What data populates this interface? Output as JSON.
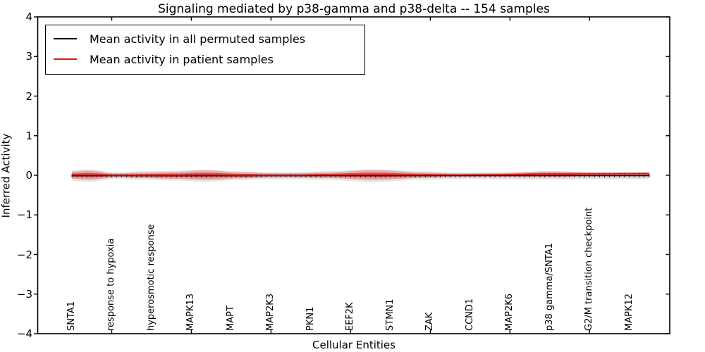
{
  "chart_data": {
    "type": "line",
    "title": "Signaling mediated by p38-gamma and p38-delta -- 154 samples",
    "xlabel": "Cellular Entities",
    "ylabel": "Inferred Activity",
    "ylim": [
      -4,
      4
    ],
    "ytick_values": [
      4,
      3,
      2,
      1,
      0,
      -1,
      -2,
      -3,
      -4
    ],
    "ytick_labels": [
      "4",
      "3",
      "2",
      "1",
      "0",
      "−1",
      "−2",
      "−3",
      "−4"
    ],
    "categories": [
      "SNTA1",
      "response to hypoxia",
      "hyperosmotic response",
      "MAPK13",
      "MAPT",
      "MAP2K3",
      "PKN1",
      "EEF2K",
      "STMN1",
      "ZAK",
      "CCND1",
      "MAP2K6",
      "p38 gamma/SNTA1",
      "G2/M transition checkpoint",
      "MAPK12"
    ],
    "n_points": 117,
    "label_every_n_points": 8,
    "xticks_at_label_indices": [
      1,
      3,
      5,
      7,
      9,
      11,
      13
    ],
    "legend": [
      {
        "label": "Mean activity in all permuted samples",
        "color": "#000000"
      },
      {
        "label": "Mean activity in patient samples",
        "color": "#ee1111"
      }
    ],
    "grid": false,
    "legend_position": "upper left",
    "envelopes": {
      "f": [
        0.0,
        0.028,
        0.077,
        0.12,
        0.181,
        0.23,
        0.291,
        0.346,
        0.388,
        0.437,
        0.523,
        0.608,
        0.669,
        0.73,
        0.828,
        0.913,
        1.0
      ],
      "permuted_mean": [
        -0.01,
        -0.01,
        -0.01,
        -0.01,
        -0.01,
        -0.01,
        -0.01,
        -0.01,
        -0.01,
        -0.01,
        -0.01,
        -0.01,
        -0.01,
        -0.01,
        -0.01,
        -0.01,
        -0.01
      ],
      "permuted_std": [
        0.133,
        0.16,
        0.08,
        0.107,
        0.124,
        0.151,
        0.107,
        0.089,
        0.089,
        0.107,
        0.16,
        0.107,
        0.08,
        0.089,
        0.098,
        0.089,
        0.089
      ],
      "patient_mean": [
        0.005,
        0.005,
        0.0,
        0.0,
        0.0,
        0.005,
        0.0,
        0.0,
        0.0,
        0.005,
        0.01,
        0.005,
        0.005,
        0.012,
        0.03,
        0.035,
        0.04
      ],
      "patient_std": [
        0.089,
        0.116,
        0.053,
        0.071,
        0.089,
        0.124,
        0.08,
        0.053,
        0.053,
        0.071,
        0.124,
        0.071,
        0.044,
        0.044,
        0.071,
        0.044,
        0.044
      ]
    },
    "colors": {
      "axis": "#000000",
      "mean_permuted": "#000000",
      "mean_patient": "#e01010",
      "band_permuted_outer": "rgba(0,0,0,0.10)",
      "band_permuted_inner": "rgba(0,0,0,0.09)",
      "band_patient_outer": "rgba(255,60,60,0.33)",
      "band_patient_core": "rgba(205,10,10,0.55)"
    }
  }
}
